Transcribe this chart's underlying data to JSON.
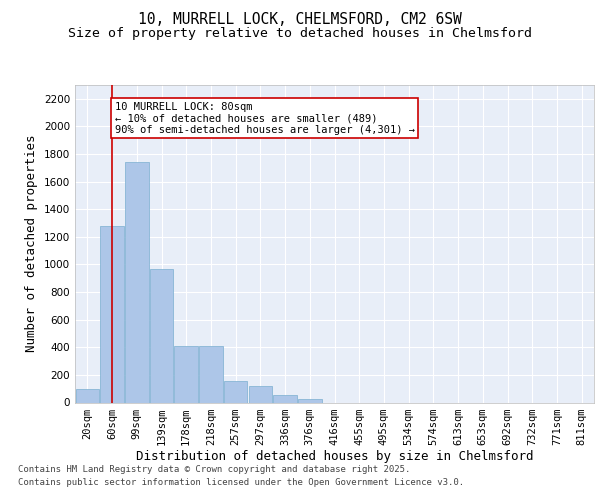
{
  "title_line1": "10, MURRELL LOCK, CHELMSFORD, CM2 6SW",
  "title_line2": "Size of property relative to detached houses in Chelmsford",
  "xlabel": "Distribution of detached houses by size in Chelmsford",
  "ylabel": "Number of detached properties",
  "categories": [
    "20sqm",
    "60sqm",
    "99sqm",
    "139sqm",
    "178sqm",
    "218sqm",
    "257sqm",
    "297sqm",
    "336sqm",
    "376sqm",
    "416sqm",
    "455sqm",
    "495sqm",
    "534sqm",
    "574sqm",
    "613sqm",
    "653sqm",
    "692sqm",
    "732sqm",
    "771sqm",
    "811sqm"
  ],
  "values": [
    100,
    1280,
    1740,
    970,
    410,
    410,
    155,
    120,
    55,
    25,
    0,
    0,
    0,
    0,
    0,
    0,
    0,
    0,
    0,
    0,
    0
  ],
  "bar_color": "#adc6e8",
  "bar_edge_color": "#7aaed0",
  "background_color": "#e8eef8",
  "grid_color": "#ffffff",
  "vline_x": 1.0,
  "vline_color": "#cc0000",
  "annotation_text": "10 MURRELL LOCK: 80sqm\n← 10% of detached houses are smaller (489)\n90% of semi-detached houses are larger (4,301) →",
  "annotation_box_color": "#ffffff",
  "annotation_box_edge_color": "#cc0000",
  "ylim": [
    0,
    2300
  ],
  "yticks": [
    0,
    200,
    400,
    600,
    800,
    1000,
    1200,
    1400,
    1600,
    1800,
    2000,
    2200
  ],
  "footer_line1": "Contains HM Land Registry data © Crown copyright and database right 2025.",
  "footer_line2": "Contains public sector information licensed under the Open Government Licence v3.0.",
  "title_fontsize": 10.5,
  "subtitle_fontsize": 9.5,
  "axis_label_fontsize": 9,
  "tick_fontsize": 7.5,
  "annotation_fontsize": 7.5,
  "footer_fontsize": 6.5
}
